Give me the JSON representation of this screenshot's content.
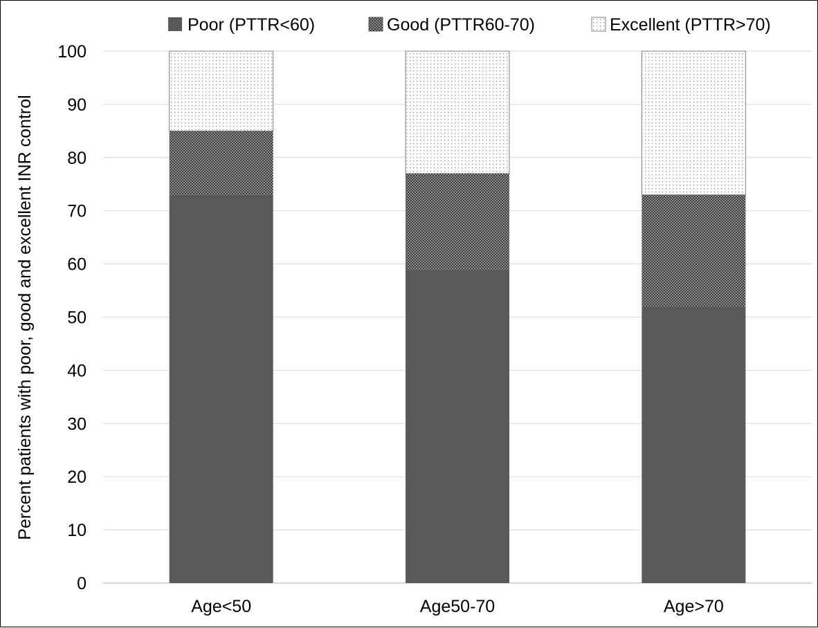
{
  "chart_data": {
    "type": "bar",
    "stacked": true,
    "categories": [
      "Age<50",
      "Age50-70",
      "Age>70"
    ],
    "series": [
      {
        "name": "Poor (PTTR<60)",
        "values": [
          73,
          59,
          52
        ],
        "pattern": "solid",
        "color": "#595959"
      },
      {
        "name": "Good (PTTR60-70)",
        "values": [
          12,
          18,
          21
        ],
        "pattern": "dense-dots",
        "color": "#595959"
      },
      {
        "name": "Excellent (PTTR>70)",
        "values": [
          15,
          23,
          27
        ],
        "pattern": "sparse-dots",
        "color": "#595959"
      }
    ],
    "ylabel": "Percent patients with poor, good and excellent INR control",
    "ylim": [
      0,
      100
    ],
    "yticks": [
      0,
      10,
      20,
      30,
      40,
      50,
      60,
      70,
      80,
      90,
      100
    ],
    "grid": true,
    "legend_position": "top"
  }
}
